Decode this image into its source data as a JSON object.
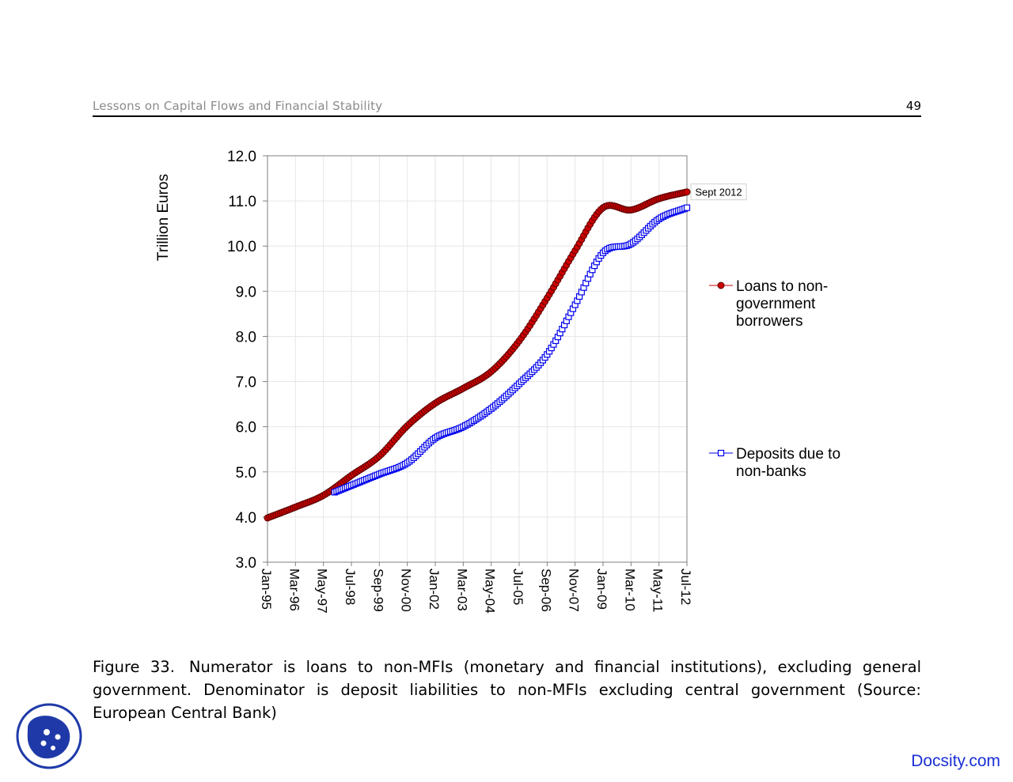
{
  "header": {
    "running_title": "Lessons on Capital Flows and Financial Stability",
    "page_number": "49"
  },
  "chart_data": {
    "type": "line",
    "title": "",
    "ylabel": "Trillion Euros",
    "xlabel": "",
    "ylim": [
      3.0,
      12.0
    ],
    "yticks": [
      "3.0",
      "4.0",
      "5.0",
      "6.0",
      "7.0",
      "8.0",
      "9.0",
      "10.0",
      "11.0",
      "12.0"
    ],
    "categories": [
      "Jan-95",
      "Mar-96",
      "May-97",
      "Jul-98",
      "Sep-99",
      "Nov-00",
      "Jan-02",
      "Mar-03",
      "May-04",
      "Jul-05",
      "Sep-06",
      "Nov-07",
      "Jan-09",
      "Mar-10",
      "May-11",
      "Jul-12"
    ],
    "grid": true,
    "annotation": "Sept 2012",
    "series": [
      {
        "name": "Loans to non-government borrowers",
        "legend_lines": [
          "Loans to non-",
          "government",
          "borrowers"
        ],
        "color": "#cc0000",
        "marker": "circle",
        "values": [
          3.98,
          4.22,
          4.48,
          4.92,
          5.35,
          6.02,
          6.52,
          6.85,
          7.22,
          7.9,
          8.85,
          9.9,
          10.85,
          10.8,
          11.05,
          11.2
        ]
      },
      {
        "name": "Deposits due to non-banks",
        "legend_lines": [
          "Deposits due to",
          "non-banks"
        ],
        "color": "#0000ee",
        "marker": "square",
        "start_index": 2.4,
        "values": [
          null,
          null,
          null,
          4.7,
          4.95,
          5.2,
          5.75,
          6.0,
          6.4,
          6.95,
          7.6,
          8.7,
          9.85,
          10.05,
          10.6,
          10.85
        ]
      }
    ]
  },
  "caption": {
    "label": "Figure 33.",
    "text": "Numerator is loans to non-MFIs (monetary and financial institutions), excluding general government. Denominator is deposit liabilities to non-MFIs excluding central government (Source: European Central Bank)"
  },
  "brand": {
    "logo_name": "docsity-logo",
    "site": "Docsity.com"
  }
}
